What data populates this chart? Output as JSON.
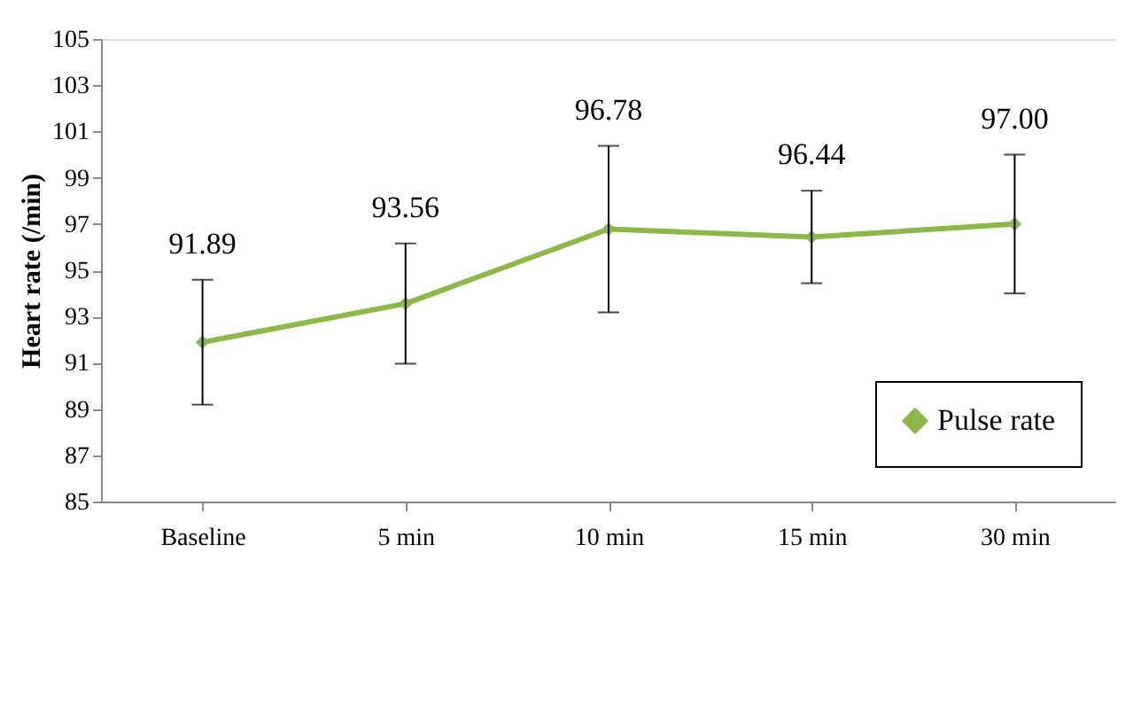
{
  "chart_data": {
    "type": "line",
    "ylabel": "Heart rate  (/min)",
    "categories": [
      "Baseline",
      "5 min",
      "10 min",
      "15 min",
      "30 min"
    ],
    "series": [
      {
        "name": "Pulse rate",
        "color": "#8db849",
        "values": [
          91.89,
          93.56,
          96.78,
          96.44,
          97.0
        ],
        "errors": [
          2.7,
          2.6,
          3.6,
          2.0,
          3.0
        ],
        "value_labels": [
          "91.89",
          "93.56",
          "96.78",
          "96.44",
          "97.00"
        ]
      }
    ],
    "ylim": [
      85,
      105
    ],
    "yticks": [
      85,
      87,
      89,
      91,
      93,
      95,
      97,
      99,
      101,
      103,
      105
    ],
    "grid": false,
    "legend": "bottom right",
    "marker": "diamond",
    "line_style": "solid"
  }
}
